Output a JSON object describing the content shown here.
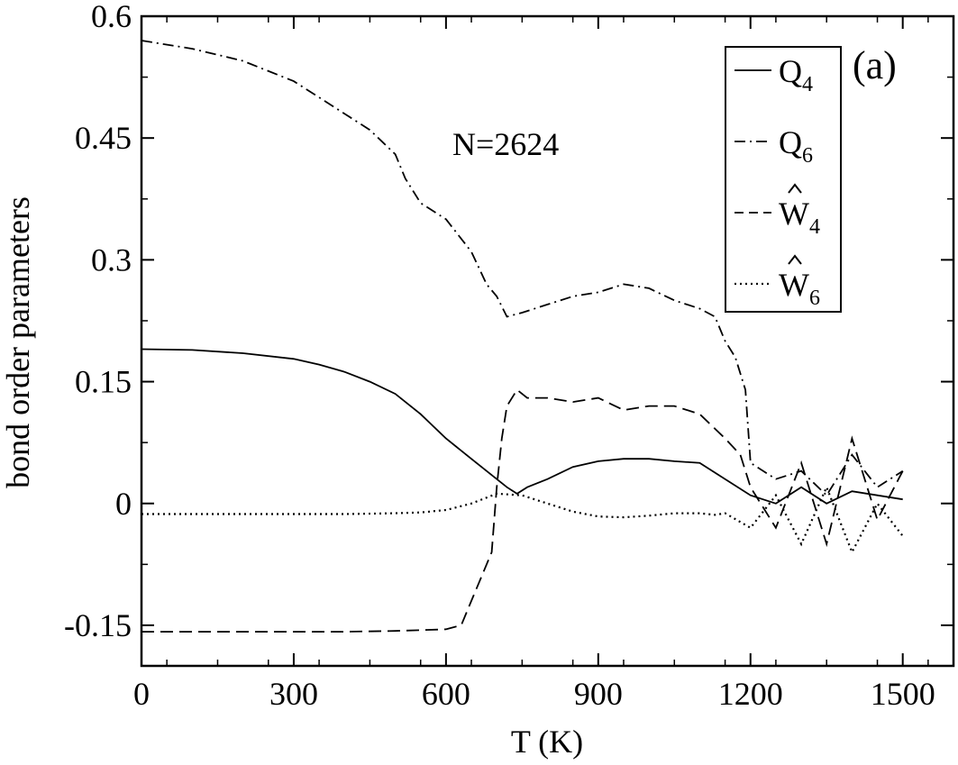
{
  "chart_data": {
    "type": "line",
    "xlabel": "T (K)",
    "ylabel": "bond order parameters",
    "xlim": [
      0,
      1600
    ],
    "ylim": [
      -0.2,
      0.6
    ],
    "x_ticks": [
      0,
      300,
      600,
      900,
      1200,
      1500
    ],
    "x_tick_labels": [
      "0",
      "300",
      "600",
      "900",
      "1200",
      "1500"
    ],
    "y_ticks": [
      -0.15,
      0,
      0.15,
      0.3,
      0.45,
      0.6
    ],
    "y_tick_labels": [
      "-0.15",
      "0",
      "0.15",
      "0.3",
      "0.45",
      "0.6"
    ],
    "annotations": {
      "size": "N=2624",
      "panel": "(a)"
    },
    "legend_position": "top-right",
    "grid": false,
    "series": [
      {
        "name": "Q4",
        "label_main": "Q",
        "label_sub": "4",
        "hat": false,
        "style": "solid",
        "x": [
          0,
          100,
          200,
          300,
          350,
          400,
          450,
          500,
          550,
          600,
          650,
          700,
          720,
          740,
          760,
          800,
          850,
          900,
          950,
          1000,
          1050,
          1100,
          1150,
          1200,
          1250,
          1300,
          1350,
          1400,
          1450,
          1500
        ],
        "values": [
          0.19,
          0.189,
          0.185,
          0.178,
          0.171,
          0.162,
          0.15,
          0.135,
          0.11,
          0.08,
          0.055,
          0.03,
          0.02,
          0.012,
          0.02,
          0.03,
          0.045,
          0.052,
          0.055,
          0.055,
          0.052,
          0.05,
          0.03,
          0.01,
          0.0,
          0.02,
          0.0,
          0.015,
          0.01,
          0.005
        ]
      },
      {
        "name": "Q6",
        "label_main": "Q",
        "label_sub": "6",
        "hat": false,
        "style": "dashdot",
        "x": [
          0,
          100,
          200,
          300,
          350,
          400,
          450,
          500,
          520,
          550,
          600,
          650,
          680,
          700,
          720,
          750,
          800,
          850,
          900,
          950,
          1000,
          1050,
          1100,
          1130,
          1150,
          1170,
          1190,
          1200,
          1250,
          1300,
          1350,
          1400,
          1450,
          1500
        ],
        "values": [
          0.57,
          0.56,
          0.545,
          0.52,
          0.5,
          0.48,
          0.46,
          0.43,
          0.4,
          0.37,
          0.35,
          0.31,
          0.27,
          0.255,
          0.23,
          0.235,
          0.245,
          0.255,
          0.26,
          0.27,
          0.265,
          0.25,
          0.24,
          0.23,
          0.2,
          0.18,
          0.14,
          0.05,
          0.03,
          0.04,
          0.01,
          0.06,
          0.02,
          0.04
        ]
      },
      {
        "name": "W4 hat",
        "label_main": "W",
        "label_sub": "4",
        "hat": true,
        "style": "dashed",
        "x": [
          0,
          100,
          200,
          300,
          400,
          500,
          550,
          600,
          630,
          650,
          670,
          690,
          700,
          710,
          720,
          740,
          760,
          800,
          850,
          900,
          950,
          1000,
          1050,
          1100,
          1150,
          1180,
          1200,
          1250,
          1300,
          1350,
          1400,
          1450,
          1500
        ],
        "values": [
          -0.158,
          -0.158,
          -0.158,
          -0.158,
          -0.158,
          -0.157,
          -0.156,
          -0.155,
          -0.15,
          -0.12,
          -0.09,
          -0.06,
          0.02,
          0.08,
          0.12,
          0.14,
          0.13,
          0.13,
          0.125,
          0.13,
          0.115,
          0.12,
          0.12,
          0.11,
          0.08,
          0.06,
          0.02,
          -0.03,
          0.05,
          -0.05,
          0.08,
          -0.02,
          0.04
        ]
      },
      {
        "name": "W6 hat",
        "label_main": "W",
        "label_sub": "6",
        "hat": true,
        "style": "dotted",
        "x": [
          0,
          100,
          200,
          300,
          400,
          500,
          550,
          600,
          650,
          700,
          750,
          800,
          850,
          900,
          950,
          1000,
          1050,
          1100,
          1130,
          1150,
          1200,
          1250,
          1300,
          1350,
          1400,
          1450,
          1500
        ],
        "values": [
          -0.013,
          -0.013,
          -0.013,
          -0.013,
          -0.013,
          -0.012,
          -0.011,
          -0.008,
          0.0,
          0.012,
          0.01,
          0.0,
          -0.01,
          -0.016,
          -0.017,
          -0.015,
          -0.012,
          -0.012,
          -0.014,
          -0.012,
          -0.03,
          0.01,
          -0.05,
          0.02,
          -0.06,
          0.0,
          -0.04
        ]
      }
    ]
  }
}
